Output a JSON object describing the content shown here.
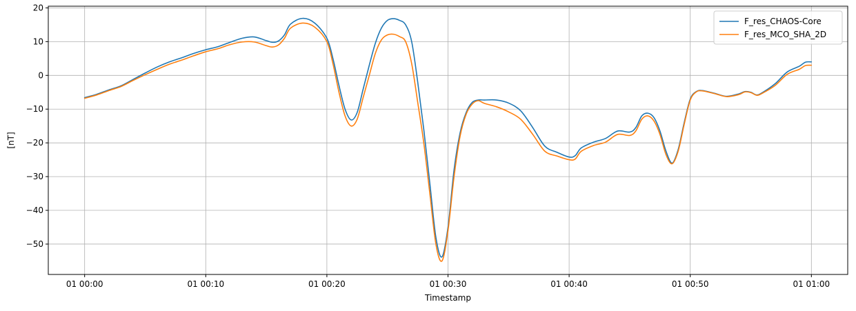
{
  "chart_data": {
    "type": "line",
    "title": "",
    "xlabel": "Timestamp",
    "ylabel": "[nT]",
    "x_unit": "minutes",
    "xlim": [
      -3,
      63
    ],
    "ylim": [
      -59,
      20.5
    ],
    "x_ticks": [
      {
        "value": 0,
        "label": "01 00:00"
      },
      {
        "value": 10,
        "label": "01 00:10"
      },
      {
        "value": 20,
        "label": "01 00:20"
      },
      {
        "value": 30,
        "label": "01 00:30"
      },
      {
        "value": 40,
        "label": "01 00:40"
      },
      {
        "value": 50,
        "label": "01 00:50"
      },
      {
        "value": 60,
        "label": "01 01:00"
      }
    ],
    "y_ticks": [
      {
        "value": 20,
        "label": "20"
      },
      {
        "value": 10,
        "label": "10"
      },
      {
        "value": 0,
        "label": "0"
      },
      {
        "value": -10,
        "label": "−10"
      },
      {
        "value": -20,
        "label": "−20"
      },
      {
        "value": -30,
        "label": "−30"
      },
      {
        "value": -40,
        "label": "−40"
      },
      {
        "value": -50,
        "label": "−50"
      }
    ],
    "grid": true,
    "legend_position": "top-right",
    "series": [
      {
        "name": "F_res_CHAOS-Core",
        "color": "#1f77b4",
        "points": [
          [
            0,
            -6.6
          ],
          [
            1,
            -5.6
          ],
          [
            2,
            -4.3
          ],
          [
            3,
            -3.1
          ],
          [
            4,
            -1.2
          ],
          [
            5,
            0.7
          ],
          [
            6,
            2.5
          ],
          [
            7,
            4.0
          ],
          [
            8,
            5.2
          ],
          [
            9,
            6.5
          ],
          [
            10,
            7.6
          ],
          [
            11,
            8.5
          ],
          [
            12,
            9.8
          ],
          [
            13,
            11.0
          ],
          [
            14,
            11.4
          ],
          [
            15,
            10.3
          ],
          [
            15.5,
            9.8
          ],
          [
            16,
            10.2
          ],
          [
            16.5,
            12.0
          ],
          [
            17,
            15.2
          ],
          [
            18,
            16.9
          ],
          [
            19,
            15.5
          ],
          [
            20,
            11.0
          ],
          [
            20.5,
            5.0
          ],
          [
            21,
            -3.0
          ],
          [
            21.5,
            -10.0
          ],
          [
            22,
            -13.2
          ],
          [
            22.5,
            -11.0
          ],
          [
            23,
            -4.0
          ],
          [
            23.5,
            3.0
          ],
          [
            24,
            9.5
          ],
          [
            24.5,
            14.0
          ],
          [
            25,
            16.3
          ],
          [
            25.5,
            16.8
          ],
          [
            26,
            16.3
          ],
          [
            26.5,
            15.0
          ],
          [
            27,
            10.0
          ],
          [
            27.5,
            -2.0
          ],
          [
            28,
            -16.0
          ],
          [
            28.5,
            -32.0
          ],
          [
            29,
            -48.0
          ],
          [
            29.5,
            -53.8
          ],
          [
            30,
            -45.0
          ],
          [
            30.5,
            -28.0
          ],
          [
            31,
            -17.0
          ],
          [
            31.5,
            -11.0
          ],
          [
            32,
            -8.0
          ],
          [
            32.5,
            -7.3
          ],
          [
            33,
            -7.3
          ],
          [
            34,
            -7.3
          ],
          [
            35,
            -8.2
          ],
          [
            36,
            -10.5
          ],
          [
            37,
            -15.5
          ],
          [
            38,
            -21.0
          ],
          [
            39,
            -22.8
          ],
          [
            40,
            -24.2
          ],
          [
            40.5,
            -23.8
          ],
          [
            41,
            -21.5
          ],
          [
            42,
            -19.8
          ],
          [
            43,
            -18.7
          ],
          [
            44,
            -16.5
          ],
          [
            45,
            -16.8
          ],
          [
            45.5,
            -15.5
          ],
          [
            46,
            -12.0
          ],
          [
            46.5,
            -11.2
          ],
          [
            47,
            -12.5
          ],
          [
            47.5,
            -16.5
          ],
          [
            48,
            -22.5
          ],
          [
            48.5,
            -26.0
          ],
          [
            49,
            -22.0
          ],
          [
            49.5,
            -14.0
          ],
          [
            50,
            -7.0
          ],
          [
            50.5,
            -4.8
          ],
          [
            51,
            -4.5
          ],
          [
            52,
            -5.3
          ],
          [
            53,
            -6.2
          ],
          [
            54,
            -5.5
          ],
          [
            54.5,
            -4.8
          ],
          [
            55,
            -5.0
          ],
          [
            55.5,
            -5.8
          ],
          [
            56,
            -5.0
          ],
          [
            57,
            -2.5
          ],
          [
            58,
            1.0
          ],
          [
            59,
            2.7
          ],
          [
            59.5,
            3.9
          ],
          [
            60,
            4.0
          ]
        ]
      },
      {
        "name": "F_res_MCO_SHA_2D",
        "color": "#ff7f0e",
        "points": [
          [
            0,
            -6.8
          ],
          [
            1,
            -5.8
          ],
          [
            2,
            -4.5
          ],
          [
            3,
            -3.3
          ],
          [
            4,
            -1.5
          ],
          [
            5,
            0.2
          ],
          [
            6,
            1.8
          ],
          [
            7,
            3.3
          ],
          [
            8,
            4.5
          ],
          [
            9,
            5.8
          ],
          [
            10,
            7.0
          ],
          [
            11,
            7.9
          ],
          [
            12,
            9.1
          ],
          [
            13,
            9.9
          ],
          [
            14,
            9.9
          ],
          [
            15,
            8.8
          ],
          [
            15.5,
            8.4
          ],
          [
            16,
            9.0
          ],
          [
            16.5,
            11.0
          ],
          [
            17,
            14.0
          ],
          [
            18,
            15.5
          ],
          [
            19,
            14.3
          ],
          [
            20,
            10.0
          ],
          [
            20.5,
            3.5
          ],
          [
            21,
            -5.0
          ],
          [
            21.5,
            -12.0
          ],
          [
            22,
            -15.0
          ],
          [
            22.5,
            -13.0
          ],
          [
            23,
            -6.5
          ],
          [
            23.5,
            0.0
          ],
          [
            24,
            6.5
          ],
          [
            24.5,
            10.5
          ],
          [
            25,
            12.0
          ],
          [
            25.5,
            12.2
          ],
          [
            26,
            11.5
          ],
          [
            26.5,
            10.0
          ],
          [
            27,
            3.5
          ],
          [
            27.5,
            -8.0
          ],
          [
            28,
            -20.0
          ],
          [
            28.5,
            -35.0
          ],
          [
            29,
            -50.0
          ],
          [
            29.5,
            -55.0
          ],
          [
            30,
            -46.0
          ],
          [
            30.5,
            -30.0
          ],
          [
            31,
            -18.0
          ],
          [
            31.5,
            -11.5
          ],
          [
            32,
            -8.5
          ],
          [
            32.5,
            -7.5
          ],
          [
            33,
            -8.3
          ],
          [
            34,
            -9.3
          ],
          [
            35,
            -10.8
          ],
          [
            36,
            -13.0
          ],
          [
            37,
            -17.5
          ],
          [
            38,
            -22.5
          ],
          [
            39,
            -23.9
          ],
          [
            40,
            -25.0
          ],
          [
            40.5,
            -24.8
          ],
          [
            41,
            -22.5
          ],
          [
            42,
            -20.8
          ],
          [
            43,
            -19.8
          ],
          [
            44,
            -17.5
          ],
          [
            45,
            -17.8
          ],
          [
            45.5,
            -16.5
          ],
          [
            46,
            -13.0
          ],
          [
            46.5,
            -12.0
          ],
          [
            47,
            -13.5
          ],
          [
            47.5,
            -17.5
          ],
          [
            48,
            -23.5
          ],
          [
            48.5,
            -26.2
          ],
          [
            49,
            -22.5
          ],
          [
            49.5,
            -14.5
          ],
          [
            50,
            -7.3
          ],
          [
            50.5,
            -4.9
          ],
          [
            51,
            -4.6
          ],
          [
            52,
            -5.4
          ],
          [
            53,
            -6.3
          ],
          [
            54,
            -5.7
          ],
          [
            54.5,
            -4.9
          ],
          [
            55,
            -5.1
          ],
          [
            55.5,
            -5.9
          ],
          [
            56,
            -5.2
          ],
          [
            57,
            -3.0
          ],
          [
            58,
            0.3
          ],
          [
            59,
            1.8
          ],
          [
            59.5,
            2.9
          ],
          [
            60,
            3.0
          ]
        ]
      }
    ]
  }
}
